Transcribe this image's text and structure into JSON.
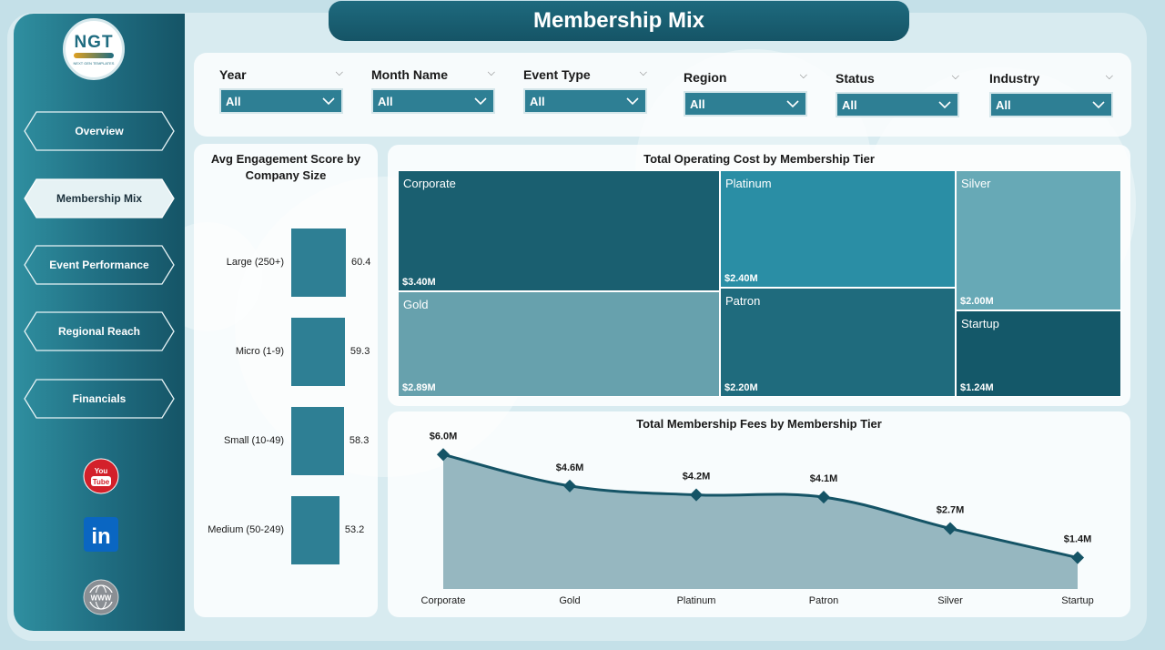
{
  "page_title": "Membership Mix",
  "logo": {
    "text": "NGT",
    "subtext": "NEXT GEN TEMPLATES"
  },
  "nav": [
    {
      "label": "Overview",
      "active": false
    },
    {
      "label": "Membership Mix",
      "active": true
    },
    {
      "label": "Event Performance",
      "active": false
    },
    {
      "label": "Regional Reach",
      "active": false
    },
    {
      "label": "Financials",
      "active": false
    }
  ],
  "social": [
    {
      "icon": "youtube-icon",
      "text": "You Tube"
    },
    {
      "icon": "linkedin-icon",
      "text": "in"
    },
    {
      "icon": "website-globe-icon",
      "text": "WWW"
    }
  ],
  "filters": [
    {
      "label": "Year",
      "value": "All"
    },
    {
      "label": "Month Name",
      "value": "All"
    },
    {
      "label": "Event Type",
      "value": "All"
    },
    {
      "label": "Region",
      "value": "All"
    },
    {
      "label": "Status",
      "value": "All"
    },
    {
      "label": "Industry",
      "value": "All"
    }
  ],
  "colors": {
    "primary": "#2e7f94",
    "dark": "#155466",
    "light": "#67a9b6",
    "area": "#96b7c0",
    "line": "#155466"
  },
  "engagement": {
    "title": "Avg Engagement Score by Company Size",
    "categories": [
      "Large (250+)",
      "Micro (1-9)",
      "Small (10-49)",
      "Medium (50-249)"
    ],
    "values": [
      60.4,
      59.3,
      58.3,
      53.2
    ],
    "value_labels": [
      "60.4",
      "59.3",
      "58.3",
      "53.2"
    ]
  },
  "operating_cost": {
    "title": "Total Operating Cost by Membership Tier",
    "tiles": [
      {
        "name": "Corporate",
        "value_label": "$3.40M",
        "color": "#1a5f70"
      },
      {
        "name": "Platinum",
        "value_label": "$2.40M",
        "color": "#2a8ea5"
      },
      {
        "name": "Silver",
        "value_label": "$2.00M",
        "color": "#67a9b6"
      },
      {
        "name": "Gold",
        "value_label": "$2.89M",
        "color": "#67a1ad"
      },
      {
        "name": "Patron",
        "value_label": "$2.20M",
        "color": "#1f6b7d"
      },
      {
        "name": "Startup",
        "value_label": "$1.24M",
        "color": "#145869"
      }
    ]
  },
  "chart_data": [
    {
      "type": "bar",
      "orientation": "horizontal",
      "title": "Avg Engagement Score by Company Size",
      "categories": [
        "Large (250+)",
        "Micro (1-9)",
        "Small (10-49)",
        "Medium (50-249)"
      ],
      "values": [
        60.4,
        59.3,
        58.3,
        53.2
      ]
    },
    {
      "type": "treemap",
      "title": "Total Operating Cost by Membership Tier",
      "categories": [
        "Corporate",
        "Gold",
        "Platinum",
        "Patron",
        "Silver",
        "Startup"
      ],
      "values": [
        3.4,
        2.89,
        2.4,
        2.2,
        2.0,
        1.24
      ],
      "unit": "$M"
    },
    {
      "type": "area",
      "title": "Total Membership Fees by Membership Tier",
      "categories": [
        "Corporate",
        "Gold",
        "Platinum",
        "Patron",
        "Silver",
        "Startup"
      ],
      "values": [
        6.0,
        4.6,
        4.2,
        4.1,
        2.7,
        1.4
      ],
      "value_labels": [
        "$6.0M",
        "$4.6M",
        "$4.2M",
        "$4.1M",
        "$2.7M",
        "$1.4M"
      ],
      "unit": "$M",
      "ylim": [
        0,
        6.5
      ],
      "grid": false
    }
  ]
}
